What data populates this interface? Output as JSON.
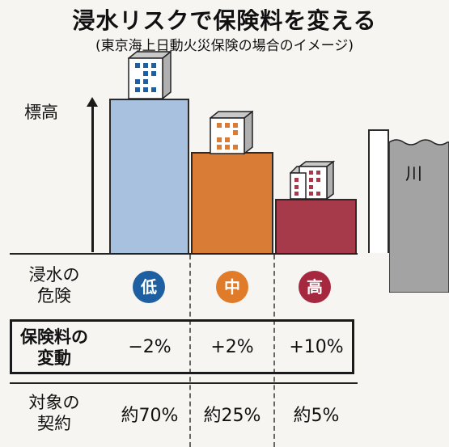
{
  "title": "浸水リスクで保険料を変える",
  "subtitle": "(東京海上日動火災保険の場合のイメージ)",
  "axis_label": "標高",
  "river_label": "川",
  "risk_row": {
    "label_line1": "浸水の",
    "label_line2": "危険",
    "levels": [
      "低",
      "中",
      "高"
    ]
  },
  "premium_row": {
    "label_line1": "保険料の",
    "label_line2": "変動",
    "values": [
      "−2%",
      "+2%",
      "+10%"
    ]
  },
  "contract_row": {
    "label_line1": "対象の",
    "label_line2": "契約",
    "values": [
      "約70%",
      "約25%",
      "約5%"
    ]
  },
  "colors": {
    "low_bar": "#a7c1df",
    "mid_bar": "#d97d36",
    "high_bar": "#a63a4a",
    "low_circle": "#1d5fa0",
    "mid_circle": "#e07b2a",
    "high_circle": "#a6283e",
    "river": "#a3a3a3"
  }
}
